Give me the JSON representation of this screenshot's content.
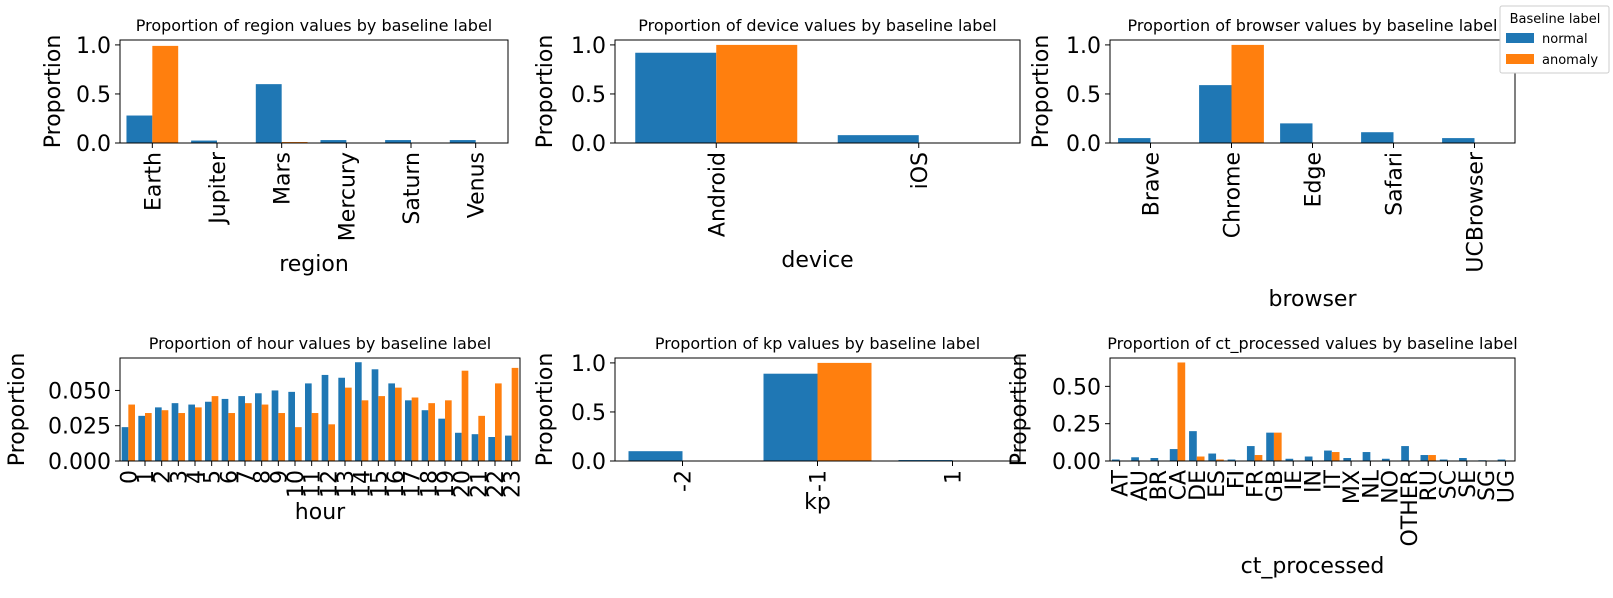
{
  "colors": {
    "normal": "#1f77b4",
    "anomaly": "#ff7f0e"
  },
  "legend": {
    "title": "Baseline label",
    "entries": [
      "normal",
      "anomaly"
    ],
    "placement": "top-right"
  },
  "chart_data": [
    {
      "type": "bar",
      "title": "Proportion of region values by baseline label",
      "xlabel": "region",
      "ylabel": "Proportion",
      "categories": [
        "Earth",
        "Jupiter",
        "Mars",
        "Mercury",
        "Saturn",
        "Venus"
      ],
      "series": [
        {
          "name": "normal",
          "values": [
            0.28,
            0.025,
            0.6,
            0.03,
            0.03,
            0.03
          ]
        },
        {
          "name": "anomaly",
          "values": [
            0.99,
            0.0,
            0.01,
            0.0,
            0.0,
            0.0
          ]
        }
      ],
      "ylim": [
        0,
        1.05
      ],
      "yticks": [
        "0.0",
        "0.5",
        "1.0"
      ]
    },
    {
      "type": "bar",
      "title": "Proportion of device values by baseline label",
      "xlabel": "device",
      "ylabel": "Proportion",
      "categories": [
        "Android",
        "iOS"
      ],
      "series": [
        {
          "name": "normal",
          "values": [
            0.92,
            0.08
          ]
        },
        {
          "name": "anomaly",
          "values": [
            1.0,
            0.0
          ]
        }
      ],
      "ylim": [
        0,
        1.05
      ],
      "yticks": [
        "0.0",
        "0.5",
        "1.0"
      ]
    },
    {
      "type": "bar",
      "title": "Proportion of browser values by baseline label",
      "xlabel": "browser",
      "ylabel": "Proportion",
      "categories": [
        "Brave",
        "Chrome",
        "Edge",
        "Safari",
        "UCBrowser"
      ],
      "series": [
        {
          "name": "normal",
          "values": [
            0.05,
            0.59,
            0.2,
            0.11,
            0.05
          ]
        },
        {
          "name": "anomaly",
          "values": [
            0.0,
            1.0,
            0.0,
            0.0,
            0.0
          ]
        }
      ],
      "ylim": [
        0,
        1.05
      ],
      "yticks": [
        "0.0",
        "0.5",
        "1.0"
      ]
    },
    {
      "type": "bar",
      "title": "Proportion of hour values by baseline label",
      "xlabel": "hour",
      "ylabel": "Proportion",
      "categories": [
        "0",
        "1",
        "2",
        "3",
        "4",
        "5",
        "6",
        "7",
        "8",
        "9",
        "10",
        "11",
        "12",
        "13",
        "14",
        "15",
        "16",
        "17",
        "18",
        "19",
        "20",
        "21",
        "22",
        "23"
      ],
      "series": [
        {
          "name": "normal",
          "values": [
            0.024,
            0.032,
            0.038,
            0.041,
            0.04,
            0.042,
            0.044,
            0.046,
            0.048,
            0.05,
            0.049,
            0.055,
            0.061,
            0.059,
            0.07,
            0.065,
            0.055,
            0.043,
            0.036,
            0.03,
            0.02,
            0.019,
            0.017,
            0.018
          ]
        },
        {
          "name": "anomaly",
          "values": [
            0.04,
            0.034,
            0.036,
            0.034,
            0.038,
            0.046,
            0.034,
            0.041,
            0.04,
            0.034,
            0.024,
            0.034,
            0.026,
            0.052,
            0.043,
            0.046,
            0.052,
            0.045,
            0.041,
            0.043,
            0.064,
            0.032,
            0.055,
            0.066
          ]
        }
      ],
      "ylim": [
        0,
        0.073
      ],
      "yticks": [
        "0.000",
        "0.025",
        "0.050"
      ]
    },
    {
      "type": "bar",
      "title": "Proportion of kp values by baseline label",
      "xlabel": "kp",
      "ylabel": "Proportion",
      "categories": [
        "-2",
        "-1",
        "1"
      ],
      "series": [
        {
          "name": "normal",
          "values": [
            0.1,
            0.89,
            0.01
          ]
        },
        {
          "name": "anomaly",
          "values": [
            0.0,
            1.0,
            0.0
          ]
        }
      ],
      "ylim": [
        0,
        1.05
      ],
      "yticks": [
        "0.0",
        "0.5",
        "1.0"
      ]
    },
    {
      "type": "bar",
      "title": "Proportion of ct_processed values by baseline label",
      "xlabel": "ct_processed",
      "ylabel": "Proportion",
      "categories": [
        "AT",
        "AU",
        "BR",
        "CA",
        "DE",
        "ES",
        "FI",
        "FR",
        "GB",
        "IE",
        "IN",
        "IT",
        "MX",
        "NL",
        "NO",
        "OTHER",
        "RU",
        "SC",
        "SE",
        "SG",
        "UG"
      ],
      "series": [
        {
          "name": "normal",
          "values": [
            0.01,
            0.025,
            0.02,
            0.08,
            0.2,
            0.05,
            0.01,
            0.1,
            0.19,
            0.015,
            0.03,
            0.07,
            0.02,
            0.06,
            0.015,
            0.1,
            0.04,
            0.01,
            0.02,
            0.005,
            0.01
          ]
        },
        {
          "name": "anomaly",
          "values": [
            0,
            0,
            0,
            0.66,
            0.03,
            0.01,
            0,
            0.04,
            0.19,
            0,
            0,
            0.06,
            0,
            0,
            0,
            0,
            0.04,
            0,
            0,
            0,
            0
          ]
        }
      ],
      "ylim": [
        0,
        0.69
      ],
      "yticks": [
        "0.00",
        "0.25",
        "0.50"
      ]
    }
  ]
}
